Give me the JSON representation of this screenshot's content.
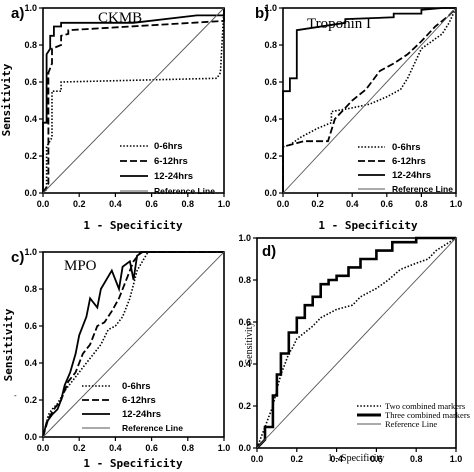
{
  "figure": {
    "stray_mark": "-"
  },
  "chart_data": [
    {
      "type": "line",
      "panel_label": "a)",
      "title": "CKMB",
      "xlabel": "1 - Specificity",
      "ylabel": "Sensitivity",
      "xlim": [
        0,
        1
      ],
      "ylim": [
        0,
        1
      ],
      "xticks": [
        "0.0",
        "0.2",
        "0.4",
        "0.6",
        "0.8",
        "1.0"
      ],
      "yticks": [
        "0.0",
        "0.2",
        "0.4",
        "0.6",
        "0.8",
        "1.0"
      ],
      "legend_position": "bottom-right",
      "series": [
        {
          "name": "0-6hrs",
          "style": "dotted",
          "x": [
            0,
            0.02,
            0.02,
            0.05,
            0.05,
            0.1,
            0.1,
            0.96,
            0.98,
            1.0
          ],
          "y": [
            0,
            0.02,
            0.25,
            0.3,
            0.55,
            0.55,
            0.6,
            0.62,
            0.65,
            1.0
          ]
        },
        {
          "name": "6-12hrs",
          "style": "dashed",
          "x": [
            0,
            0.03,
            0.03,
            0.05,
            0.05,
            0.1,
            0.1,
            0.14,
            0.14,
            1.0,
            1.0
          ],
          "y": [
            0,
            0.05,
            0.65,
            0.7,
            0.78,
            0.8,
            0.85,
            0.86,
            0.88,
            0.93,
            1.0
          ]
        },
        {
          "name": "12-24hrs",
          "style": "solid",
          "x": [
            0,
            0.0,
            0.02,
            0.02,
            0.04,
            0.04,
            0.06,
            0.06,
            0.1,
            0.1,
            0.5,
            0.85,
            1.0,
            1.0
          ],
          "y": [
            0,
            0.38,
            0.38,
            0.75,
            0.78,
            0.85,
            0.85,
            0.9,
            0.9,
            0.92,
            0.92,
            0.96,
            0.96,
            1.0
          ]
        },
        {
          "name": "Reference Line",
          "style": "reference",
          "x": [
            0,
            1
          ],
          "y": [
            0,
            1
          ]
        }
      ]
    },
    {
      "type": "line",
      "panel_label": "b)",
      "title": "Troponin I",
      "xlabel": "1 - Specificity",
      "ylabel": "",
      "xlim": [
        0,
        1
      ],
      "ylim": [
        0,
        1
      ],
      "xticks": [
        "0.0",
        "0.2",
        "0.4",
        "0.6",
        "0.8",
        "1.0"
      ],
      "yticks": [
        "0.0",
        "0.2",
        "0.4",
        "0.6",
        "0.8",
        "1.0"
      ],
      "legend_position": "bottom-right",
      "series": [
        {
          "name": "0-6hrs",
          "style": "dotted",
          "x": [
            0,
            0.0,
            0.04,
            0.1,
            0.2,
            0.28,
            0.28,
            0.4,
            0.5,
            0.6,
            0.68,
            0.72,
            0.8,
            0.92,
            0.96,
            1.0
          ],
          "y": [
            0,
            0.25,
            0.26,
            0.3,
            0.35,
            0.38,
            0.44,
            0.46,
            0.48,
            0.52,
            0.56,
            0.62,
            0.78,
            0.86,
            0.92,
            1.0
          ]
        },
        {
          "name": "6-12hrs",
          "style": "dashed",
          "x": [
            0,
            0.0,
            0.12,
            0.26,
            0.3,
            0.4,
            0.48,
            0.56,
            0.64,
            0.72,
            0.8,
            0.88,
            0.96,
            1.0
          ],
          "y": [
            0,
            0.25,
            0.28,
            0.28,
            0.4,
            0.5,
            0.56,
            0.66,
            0.7,
            0.75,
            0.82,
            0.9,
            0.96,
            1.0
          ]
        },
        {
          "name": "12-24hrs",
          "style": "solid",
          "x": [
            0,
            0.0,
            0.04,
            0.04,
            0.08,
            0.08,
            0.36,
            0.36,
            0.64,
            0.64,
            0.8,
            0.8,
            0.92,
            1.0
          ],
          "y": [
            0,
            0.55,
            0.55,
            0.62,
            0.62,
            0.88,
            0.92,
            0.94,
            0.95,
            0.97,
            0.97,
            0.99,
            1.0,
            1.0
          ]
        },
        {
          "name": "Reference Line",
          "style": "reference",
          "x": [
            0,
            1
          ],
          "y": [
            0,
            1
          ]
        }
      ]
    },
    {
      "type": "line",
      "panel_label": "c)",
      "title": "MPO",
      "xlabel": "1 - Specificity",
      "ylabel": "Sensitivity",
      "xlim": [
        0,
        1
      ],
      "ylim": [
        0,
        1
      ],
      "xticks": [
        "0.0",
        "0.2",
        "0.4",
        "0.6",
        "0.8",
        "1.0"
      ],
      "yticks": [
        "0.0",
        "0.2",
        "0.4",
        "0.6",
        "0.8",
        "1.0"
      ],
      "legend_position": "bottom-right",
      "series": [
        {
          "name": "0-6hrs",
          "style": "dotted",
          "x": [
            0,
            0.03,
            0.05,
            0.08,
            0.12,
            0.16,
            0.2,
            0.24,
            0.28,
            0.32,
            0.36,
            0.4,
            0.44,
            0.48,
            0.52,
            0.58,
            1.0
          ],
          "y": [
            0,
            0.12,
            0.15,
            0.18,
            0.25,
            0.3,
            0.35,
            0.4,
            0.45,
            0.5,
            0.58,
            0.6,
            0.65,
            0.75,
            0.9,
            1.0,
            1.0
          ]
        },
        {
          "name": "6-12hrs",
          "style": "dashed",
          "x": [
            0,
            0.03,
            0.06,
            0.1,
            0.14,
            0.18,
            0.22,
            0.26,
            0.3,
            0.34,
            0.38,
            0.42,
            0.46,
            0.5,
            0.54,
            0.6,
            1.0
          ],
          "y": [
            0,
            0.1,
            0.15,
            0.2,
            0.3,
            0.35,
            0.45,
            0.5,
            0.6,
            0.62,
            0.68,
            0.75,
            0.85,
            0.95,
            1.0,
            1.0,
            1.0
          ]
        },
        {
          "name": "12-24hrs",
          "style": "solid",
          "x": [
            0,
            0.02,
            0.05,
            0.08,
            0.1,
            0.12,
            0.15,
            0.18,
            0.2,
            0.24,
            0.26,
            0.3,
            0.32,
            0.35,
            0.38,
            0.42,
            0.44,
            0.48,
            0.5,
            0.52,
            0.55,
            1.0
          ],
          "y": [
            0,
            0.08,
            0.12,
            0.15,
            0.2,
            0.28,
            0.35,
            0.45,
            0.55,
            0.65,
            0.75,
            0.7,
            0.8,
            0.85,
            0.9,
            0.8,
            0.92,
            0.95,
            0.85,
            0.98,
            1.0,
            1.0
          ]
        },
        {
          "name": "Reference Line",
          "style": "reference",
          "x": [
            0,
            1
          ],
          "y": [
            0,
            1
          ]
        }
      ]
    },
    {
      "type": "line",
      "panel_label": "d)",
      "title": "",
      "xlabel": "1 - Specificity",
      "ylabel": "Sensitivity",
      "xlim": [
        0,
        1
      ],
      "ylim": [
        0,
        1
      ],
      "xticks": [
        "0.0",
        "0.2",
        "0.4",
        "0.6",
        "0.8",
        "1.0"
      ],
      "yticks": [
        "0.0",
        "0.2",
        "0.4",
        "0.6",
        "0.8",
        "1.0"
      ],
      "legend_position": "bottom-right",
      "series": [
        {
          "name": "Two combined markers",
          "style": "dotted",
          "x": [
            0,
            0.02,
            0.04,
            0.06,
            0.08,
            0.1,
            0.12,
            0.14,
            0.16,
            0.18,
            0.2,
            0.24,
            0.28,
            0.32,
            0.4,
            0.48,
            0.52,
            0.6,
            0.66,
            0.72,
            0.8,
            0.86,
            0.9,
            1.0
          ],
          "y": [
            0,
            0.05,
            0.1,
            0.15,
            0.2,
            0.28,
            0.35,
            0.4,
            0.45,
            0.48,
            0.52,
            0.55,
            0.58,
            0.62,
            0.66,
            0.68,
            0.72,
            0.76,
            0.8,
            0.85,
            0.88,
            0.9,
            0.94,
            1.0
          ]
        },
        {
          "name": "Three combined markers",
          "style": "solid",
          "x": [
            0,
            0.04,
            0.04,
            0.08,
            0.08,
            0.1,
            0.1,
            0.12,
            0.12,
            0.16,
            0.16,
            0.2,
            0.2,
            0.24,
            0.24,
            0.28,
            0.28,
            0.32,
            0.32,
            0.36,
            0.36,
            0.4,
            0.4,
            0.46,
            0.46,
            0.52,
            0.52,
            0.6,
            0.6,
            0.68,
            0.68,
            0.8,
            0.8,
            1.0
          ],
          "y": [
            0,
            0.04,
            0.1,
            0.1,
            0.25,
            0.25,
            0.35,
            0.35,
            0.45,
            0.45,
            0.55,
            0.55,
            0.62,
            0.62,
            0.68,
            0.68,
            0.72,
            0.72,
            0.78,
            0.78,
            0.8,
            0.8,
            0.82,
            0.82,
            0.86,
            0.86,
            0.9,
            0.9,
            0.94,
            0.94,
            0.98,
            0.98,
            1.0,
            1.0
          ]
        },
        {
          "name": "Reference Line",
          "style": "reference",
          "x": [
            0,
            1
          ],
          "y": [
            0,
            1
          ]
        }
      ]
    }
  ]
}
